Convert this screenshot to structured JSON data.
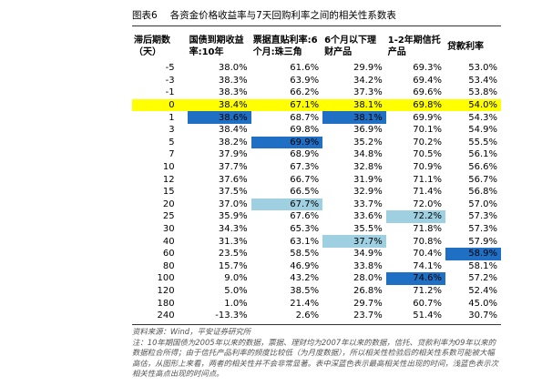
{
  "title": {
    "label": "图表6",
    "text": "各资金价格收益率与7天回购利率之间的相关性系数表"
  },
  "table": {
    "header": [
      "滞后期数（天）",
      "国债到期收益率:10年",
      "票据直贴利率:6个月:珠三角",
      "6个月以下理财产品",
      "1-2年期信托产品",
      "贷款利率"
    ],
    "rows": [
      [
        "-5",
        "38.0%",
        "61.6%",
        "29.9%",
        "69.3%",
        "53.0%"
      ],
      [
        "-3",
        "38.3%",
        "63.9%",
        "34.2%",
        "69.4%",
        "53.4%"
      ],
      [
        "-1",
        "38.3%",
        "66.2%",
        "37.3%",
        "69.6%",
        "53.8%"
      ],
      [
        "0",
        "38.4%",
        "67.1%",
        "38.1%",
        "69.8%",
        "54.0%"
      ],
      [
        "1",
        "38.6%",
        "68.7%",
        "38.1%",
        "69.9%",
        "54.3%"
      ],
      [
        "3",
        "38.4%",
        "69.8%",
        "36.9%",
        "70.1%",
        "54.9%"
      ],
      [
        "5",
        "38.2%",
        "69.9%",
        "35.2%",
        "70.2%",
        "55.5%"
      ],
      [
        "7",
        "37.9%",
        "68.9%",
        "34.8%",
        "70.5%",
        "56.1%"
      ],
      [
        "10",
        "37.7%",
        "67.3%",
        "32.8%",
        "70.9%",
        "56.6%"
      ],
      [
        "12",
        "37.6%",
        "66.7%",
        "31.9%",
        "71.1%",
        "56.7%"
      ],
      [
        "15",
        "37.5%",
        "66.5%",
        "32.9%",
        "71.4%",
        "56.8%"
      ],
      [
        "20",
        "37.0%",
        "67.7%",
        "33.7%",
        "72.0%",
        "57.0%"
      ],
      [
        "25",
        "35.9%",
        "67.6%",
        "33.6%",
        "72.2%",
        "57.3%"
      ],
      [
        "30",
        "34.3%",
        "65.3%",
        "35.5%",
        "71.8%",
        "57.3%"
      ],
      [
        "40",
        "31.3%",
        "63.1%",
        "37.7%",
        "70.8%",
        "57.9%"
      ],
      [
        "60",
        "23.5%",
        "58.5%",
        "34.9%",
        "70.4%",
        "58.9%"
      ],
      [
        "80",
        "15.7%",
        "46.9%",
        "33.8%",
        "74.1%",
        "58.1%"
      ],
      [
        "100",
        "9.0%",
        "43.2%",
        "28.0%",
        "74.6%",
        "57.2%"
      ],
      [
        "120",
        "5.0%",
        "38.5%",
        "26.8%",
        "71.2%",
        "52.4%"
      ],
      [
        "180",
        "1.0%",
        "21.4%",
        "29.7%",
        "60.7%",
        "45.0%"
      ],
      [
        "240",
        "-13.3%",
        "2.6%",
        "23.7%",
        "51.4%",
        "30.7%"
      ]
    ],
    "highlight_row": {
      "row": 3,
      "color": "#ffff00"
    },
    "dark_cells": {
      "color": "#1f6fc5",
      "cells": [
        [
          4,
          1
        ],
        [
          4,
          3
        ],
        [
          6,
          2
        ],
        [
          15,
          5
        ],
        [
          17,
          4
        ]
      ]
    },
    "light_cells": {
      "color": "#9fd0e2",
      "cells": [
        [
          11,
          2
        ],
        [
          12,
          4
        ],
        [
          14,
          3
        ]
      ]
    }
  },
  "notes": {
    "source": "资料来源：Wind，平安证券研究所",
    "note": "注：10年期国债为2005年以来的数据，票据、理财均为2007年以来的数据，信托、贷款利率为09年以来的数据粒合所得；由于信托产品利率的频度比较低（为月度数据），所以相关性检验后的相关性系数可能被大幅高估，从图形上来看，两者的相关性并不会非常显著。表中深蓝色表示最高相关性出现的时间，浅蓝色表示次相关性高点出现的时间点。"
  }
}
